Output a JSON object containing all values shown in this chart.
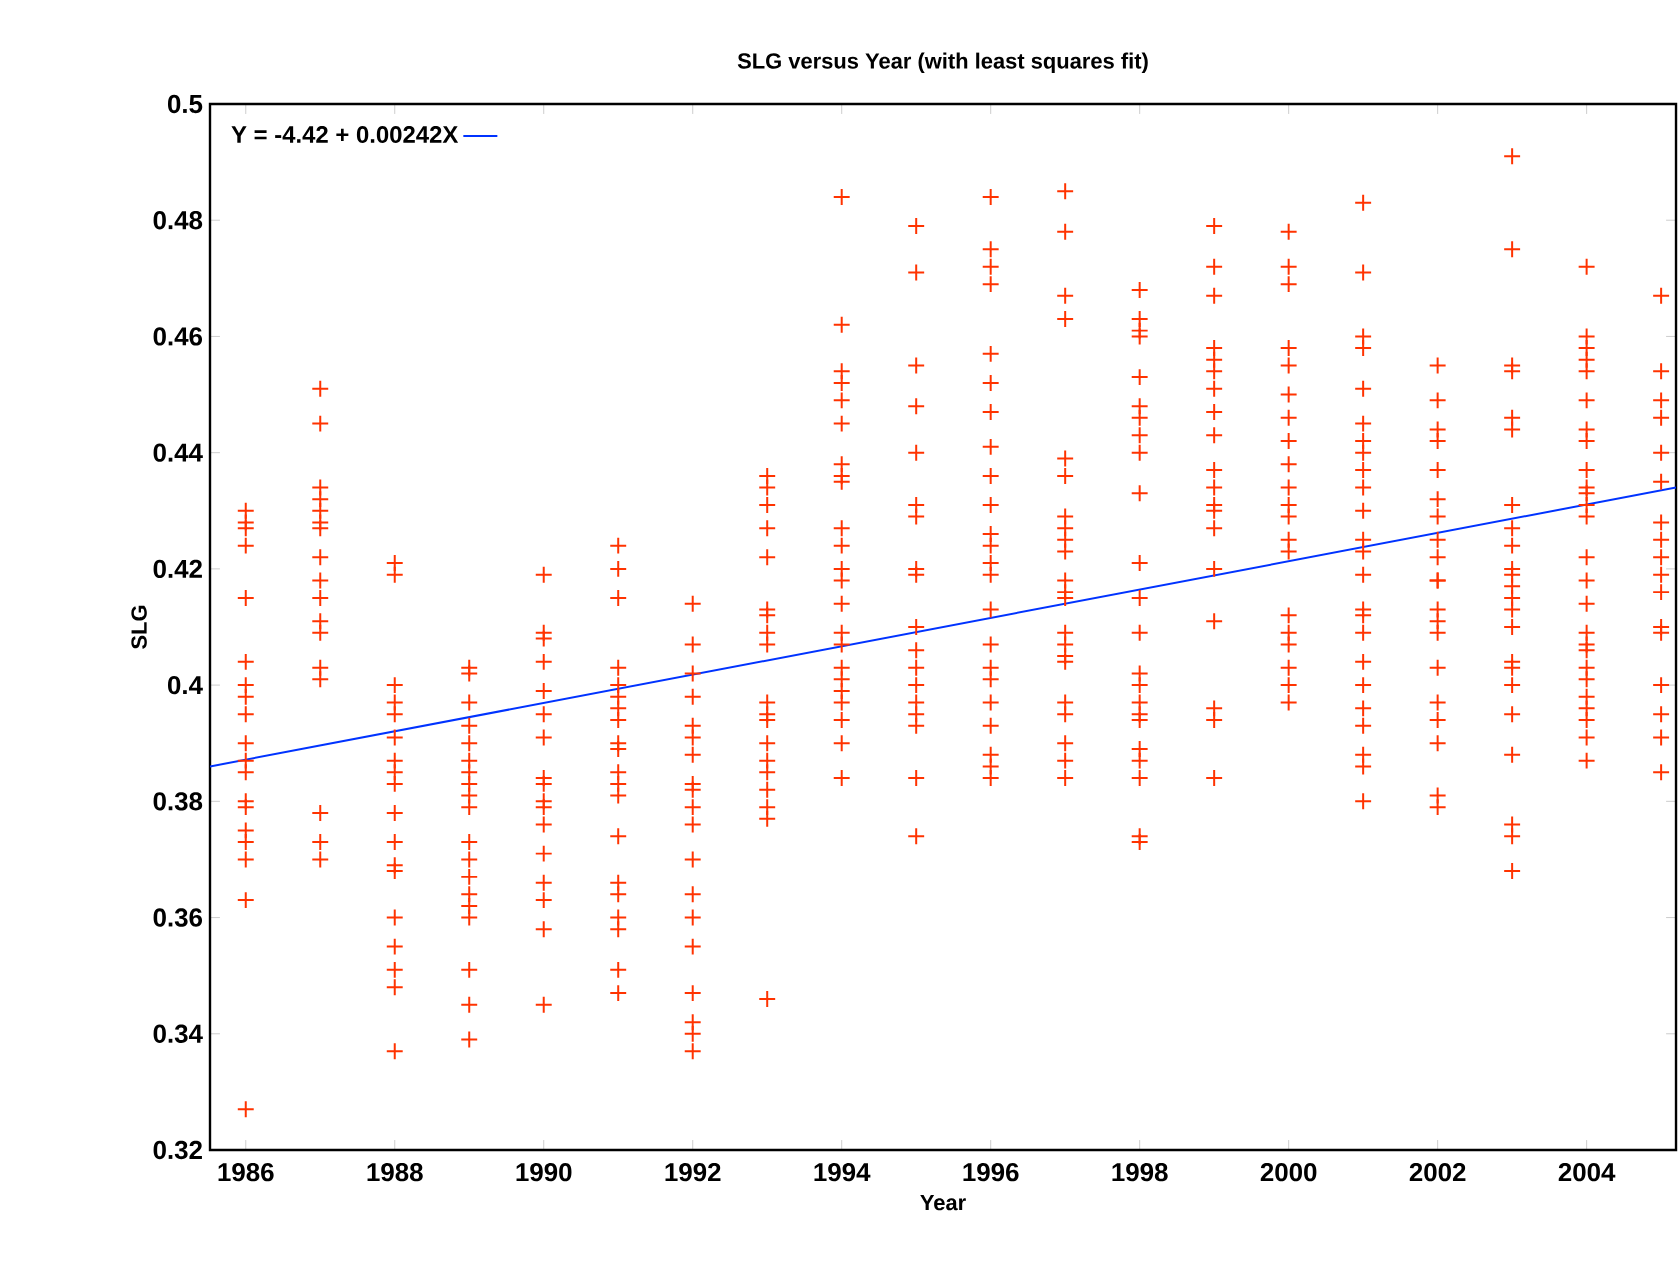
{
  "chart_data": {
    "type": "scatter",
    "title": "SLG versus Year (with least squares fit)",
    "xlabel": "Year",
    "ylabel": "SLG",
    "xlim": [
      1985.52,
      2005.2
    ],
    "ylim": [
      0.32,
      0.5
    ],
    "xticks": [
      1986,
      1988,
      1990,
      1992,
      1994,
      1996,
      1998,
      2000,
      2002,
      2004
    ],
    "yticks": [
      0.32,
      0.34,
      0.36,
      0.38,
      0.4,
      0.42,
      0.44,
      0.46,
      0.48,
      0.5
    ],
    "marker": "cross",
    "legend": "top left",
    "grid": false,
    "series": [
      {
        "color": "#ff3300",
        "x": [
          1986,
          1986,
          1986,
          1986,
          1986,
          1986,
          1986,
          1986,
          1986,
          1986,
          1986,
          1986,
          1986,
          1986,
          1986,
          1986,
          1986,
          1986,
          1986
        ],
        "values": [
          0.43,
          0.428,
          0.427,
          0.424,
          0.415,
          0.404,
          0.4,
          0.398,
          0.395,
          0.39,
          0.387,
          0.385,
          0.38,
          0.379,
          0.375,
          0.373,
          0.37,
          0.363,
          0.327
        ]
      },
      {
        "color": "#ff3300",
        "x": [
          1987,
          1987,
          1987,
          1987,
          1987,
          1987,
          1987,
          1987,
          1987,
          1987,
          1987,
          1987,
          1987,
          1987,
          1987,
          1987,
          1987
        ],
        "values": [
          0.451,
          0.445,
          0.434,
          0.432,
          0.43,
          0.428,
          0.427,
          0.422,
          0.418,
          0.415,
          0.411,
          0.409,
          0.403,
          0.401,
          0.378,
          0.373,
          0.37
        ]
      },
      {
        "color": "#ff3300",
        "x": [
          1988,
          1988,
          1988,
          1988,
          1988,
          1988,
          1988,
          1988,
          1988,
          1988,
          1988,
          1988,
          1988,
          1988,
          1988,
          1988,
          1988,
          1988
        ],
        "values": [
          0.421,
          0.419,
          0.4,
          0.397,
          0.395,
          0.391,
          0.387,
          0.385,
          0.383,
          0.378,
          0.373,
          0.369,
          0.368,
          0.36,
          0.355,
          0.351,
          0.348,
          0.337
        ]
      },
      {
        "color": "#ff3300",
        "x": [
          1989,
          1989,
          1989,
          1989,
          1989,
          1989,
          1989,
          1989,
          1989,
          1989,
          1989,
          1989,
          1989,
          1989,
          1989,
          1989,
          1989,
          1989,
          1989
        ],
        "values": [
          0.403,
          0.402,
          0.397,
          0.393,
          0.39,
          0.387,
          0.385,
          0.383,
          0.381,
          0.379,
          0.373,
          0.37,
          0.367,
          0.364,
          0.362,
          0.36,
          0.351,
          0.345,
          0.339
        ]
      },
      {
        "color": "#ff3300",
        "x": [
          1990,
          1990,
          1990,
          1990,
          1990,
          1990,
          1990,
          1990,
          1990,
          1990,
          1990,
          1990,
          1990,
          1990,
          1990,
          1990,
          1990
        ],
        "values": [
          0.419,
          0.409,
          0.408,
          0.404,
          0.399,
          0.395,
          0.391,
          0.384,
          0.383,
          0.38,
          0.379,
          0.376,
          0.371,
          0.366,
          0.363,
          0.358,
          0.345
        ]
      },
      {
        "color": "#ff3300",
        "x": [
          1991,
          1991,
          1991,
          1991,
          1991,
          1991,
          1991,
          1991,
          1991,
          1991,
          1991,
          1991,
          1991,
          1991,
          1991,
          1991,
          1991,
          1991,
          1991,
          1991
        ],
        "values": [
          0.424,
          0.42,
          0.415,
          0.403,
          0.4,
          0.398,
          0.396,
          0.394,
          0.39,
          0.389,
          0.385,
          0.383,
          0.381,
          0.374,
          0.366,
          0.364,
          0.36,
          0.358,
          0.351,
          0.347
        ]
      },
      {
        "color": "#ff3300",
        "x": [
          1992,
          1992,
          1992,
          1992,
          1992,
          1992,
          1992,
          1992,
          1992,
          1992,
          1992,
          1992,
          1992,
          1992,
          1992,
          1992,
          1992,
          1992,
          1992
        ],
        "values": [
          0.414,
          0.407,
          0.402,
          0.398,
          0.393,
          0.391,
          0.388,
          0.383,
          0.382,
          0.379,
          0.376,
          0.37,
          0.364,
          0.36,
          0.355,
          0.347,
          0.342,
          0.34,
          0.337
        ]
      },
      {
        "color": "#ff3300",
        "x": [
          1993,
          1993,
          1993,
          1993,
          1993,
          1993,
          1993,
          1993,
          1993,
          1993,
          1993,
          1993,
          1993,
          1993,
          1993,
          1993,
          1993,
          1993,
          1993
        ],
        "values": [
          0.436,
          0.434,
          0.431,
          0.427,
          0.422,
          0.413,
          0.412,
          0.409,
          0.407,
          0.397,
          0.395,
          0.394,
          0.39,
          0.387,
          0.385,
          0.382,
          0.379,
          0.377,
          0.346
        ]
      },
      {
        "color": "#ff3300",
        "x": [
          1994,
          1994,
          1994,
          1994,
          1994,
          1994,
          1994,
          1994,
          1994,
          1994,
          1994,
          1994,
          1994,
          1994,
          1994,
          1994,
          1994,
          1994,
          1994,
          1994,
          1994,
          1994,
          1994
        ],
        "values": [
          0.484,
          0.462,
          0.454,
          0.452,
          0.449,
          0.445,
          0.438,
          0.436,
          0.435,
          0.427,
          0.424,
          0.42,
          0.418,
          0.414,
          0.409,
          0.407,
          0.403,
          0.401,
          0.399,
          0.397,
          0.394,
          0.39,
          0.384
        ]
      },
      {
        "color": "#ff3300",
        "x": [
          1995,
          1995,
          1995,
          1995,
          1995,
          1995,
          1995,
          1995,
          1995,
          1995,
          1995,
          1995,
          1995,
          1995,
          1995,
          1995,
          1995,
          1995
        ],
        "values": [
          0.479,
          0.471,
          0.455,
          0.448,
          0.44,
          0.431,
          0.429,
          0.42,
          0.419,
          0.41,
          0.406,
          0.403,
          0.4,
          0.397,
          0.395,
          0.393,
          0.384,
          0.374
        ]
      },
      {
        "color": "#ff3300",
        "x": [
          1996,
          1996,
          1996,
          1996,
          1996,
          1996,
          1996,
          1996,
          1996,
          1996,
          1996,
          1996,
          1996,
          1996,
          1996,
          1996,
          1996,
          1996,
          1996,
          1996,
          1996,
          1996,
          1996
        ],
        "values": [
          0.484,
          0.475,
          0.472,
          0.469,
          0.457,
          0.452,
          0.447,
          0.441,
          0.436,
          0.431,
          0.426,
          0.424,
          0.421,
          0.419,
          0.413,
          0.407,
          0.403,
          0.401,
          0.397,
          0.393,
          0.388,
          0.386,
          0.384
        ]
      },
      {
        "color": "#ff3300",
        "x": [
          1997,
          1997,
          1997,
          1997,
          1997,
          1997,
          1997,
          1997,
          1997,
          1997,
          1997,
          1997,
          1997,
          1997,
          1997,
          1997,
          1997,
          1997,
          1997,
          1997,
          1997,
          1997
        ],
        "values": [
          0.485,
          0.478,
          0.467,
          0.463,
          0.439,
          0.436,
          0.429,
          0.427,
          0.425,
          0.423,
          0.418,
          0.416,
          0.415,
          0.409,
          0.407,
          0.405,
          0.404,
          0.397,
          0.395,
          0.39,
          0.387,
          0.384
        ]
      },
      {
        "color": "#ff3300",
        "x": [
          1998,
          1998,
          1998,
          1998,
          1998,
          1998,
          1998,
          1998,
          1998,
          1998,
          1998,
          1998,
          1998,
          1998,
          1998,
          1998,
          1998,
          1998,
          1998,
          1998,
          1998,
          1998,
          1998
        ],
        "values": [
          0.468,
          0.463,
          0.461,
          0.46,
          0.453,
          0.448,
          0.446,
          0.443,
          0.44,
          0.433,
          0.421,
          0.415,
          0.409,
          0.402,
          0.4,
          0.397,
          0.395,
          0.394,
          0.389,
          0.387,
          0.384,
          0.374,
          0.373
        ]
      },
      {
        "color": "#ff3300",
        "x": [
          1999,
          1999,
          1999,
          1999,
          1999,
          1999,
          1999,
          1999,
          1999,
          1999,
          1999,
          1999,
          1999,
          1999,
          1999,
          1999,
          1999,
          1999,
          1999
        ],
        "values": [
          0.479,
          0.472,
          0.467,
          0.458,
          0.456,
          0.454,
          0.451,
          0.447,
          0.443,
          0.437,
          0.434,
          0.431,
          0.43,
          0.427,
          0.42,
          0.411,
          0.396,
          0.394,
          0.384
        ]
      },
      {
        "color": "#ff3300",
        "x": [
          2000,
          2000,
          2000,
          2000,
          2000,
          2000,
          2000,
          2000,
          2000,
          2000,
          2000,
          2000,
          2000,
          2000,
          2000,
          2000,
          2000,
          2000,
          2000,
          2000
        ],
        "values": [
          0.478,
          0.472,
          0.469,
          0.458,
          0.455,
          0.45,
          0.446,
          0.442,
          0.438,
          0.434,
          0.431,
          0.429,
          0.425,
          0.423,
          0.412,
          0.409,
          0.407,
          0.403,
          0.4,
          0.397
        ]
      },
      {
        "color": "#ff3300",
        "x": [
          2001,
          2001,
          2001,
          2001,
          2001,
          2001,
          2001,
          2001,
          2001,
          2001,
          2001,
          2001,
          2001,
          2001,
          2001,
          2001,
          2001,
          2001,
          2001,
          2001,
          2001,
          2001,
          2001,
          2001
        ],
        "values": [
          0.483,
          0.471,
          0.46,
          0.458,
          0.451,
          0.445,
          0.442,
          0.44,
          0.437,
          0.434,
          0.43,
          0.425,
          0.423,
          0.419,
          0.413,
          0.412,
          0.409,
          0.404,
          0.4,
          0.396,
          0.393,
          0.388,
          0.386,
          0.38
        ]
      },
      {
        "color": "#ff3300",
        "x": [
          2002,
          2002,
          2002,
          2002,
          2002,
          2002,
          2002,
          2002,
          2002,
          2002,
          2002,
          2002,
          2002,
          2002,
          2002,
          2002,
          2002,
          2002,
          2002,
          2002
        ],
        "values": [
          0.455,
          0.449,
          0.444,
          0.442,
          0.437,
          0.432,
          0.429,
          0.425,
          0.422,
          0.418,
          0.418,
          0.413,
          0.411,
          0.409,
          0.403,
          0.397,
          0.394,
          0.39,
          0.381,
          0.379
        ]
      },
      {
        "color": "#ff3300",
        "x": [
          2003,
          2003,
          2003,
          2003,
          2003,
          2003,
          2003,
          2003,
          2003,
          2003,
          2003,
          2003,
          2003,
          2003,
          2003,
          2003,
          2003,
          2003,
          2003,
          2003,
          2003,
          2003,
          2003
        ],
        "values": [
          0.491,
          0.475,
          0.455,
          0.454,
          0.446,
          0.444,
          0.431,
          0.427,
          0.424,
          0.42,
          0.419,
          0.417,
          0.415,
          0.413,
          0.41,
          0.404,
          0.403,
          0.4,
          0.395,
          0.388,
          0.376,
          0.374,
          0.368
        ]
      },
      {
        "color": "#ff3300",
        "x": [
          2004,
          2004,
          2004,
          2004,
          2004,
          2004,
          2004,
          2004,
          2004,
          2004,
          2004,
          2004,
          2004,
          2004,
          2004,
          2004,
          2004,
          2004,
          2004,
          2004,
          2004,
          2004,
          2004,
          2004,
          2004,
          2004
        ],
        "values": [
          0.472,
          0.46,
          0.458,
          0.456,
          0.454,
          0.449,
          0.444,
          0.442,
          0.437,
          0.434,
          0.433,
          0.431,
          0.429,
          0.422,
          0.418,
          0.414,
          0.409,
          0.407,
          0.406,
          0.403,
          0.401,
          0.398,
          0.396,
          0.394,
          0.391,
          0.387
        ]
      },
      {
        "color": "#ff3300",
        "x": [
          2005,
          2005,
          2005,
          2005,
          2005,
          2005,
          2005,
          2005,
          2005,
          2005,
          2005,
          2005,
          2005,
          2005,
          2005,
          2005,
          2005
        ],
        "values": [
          0.467,
          0.454,
          0.449,
          0.446,
          0.44,
          0.435,
          0.428,
          0.425,
          0.422,
          0.419,
          0.416,
          0.41,
          0.409,
          0.4,
          0.395,
          0.391,
          0.385
        ]
      },
      {
        "type": "line",
        "name": "Y = -4.42 + 0.00242X",
        "color": "#0033ff",
        "line_style": "solid",
        "marker": "none",
        "x": [
          1985.52,
          2005.2
        ],
        "values": [
          0.386,
          0.434
        ]
      }
    ]
  }
}
